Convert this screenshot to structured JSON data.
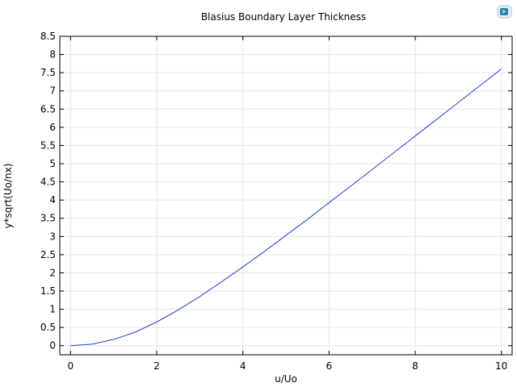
{
  "chart_data": {
    "type": "line",
    "title": "Blasius Boundary Layer Thickness",
    "xlabel": "u/Uo",
    "ylabel": "y*sqrt(Uo/nx)",
    "xlim": [
      -0.25,
      10.25
    ],
    "ylim": [
      -0.25,
      8.5
    ],
    "xticks": [
      0,
      2,
      4,
      6,
      8,
      10
    ],
    "yticks": [
      0,
      0.5,
      1,
      1.5,
      2,
      2.5,
      3,
      3.5,
      4,
      4.5,
      5,
      5.5,
      6,
      6.5,
      7,
      7.5,
      8,
      8.5
    ],
    "grid": true,
    "series": [
      {
        "color": "#1f3fd6",
        "x": [
          0,
          0.5,
          1,
          1.5,
          2,
          2.5,
          3,
          3.5,
          4,
          4.5,
          5,
          5.5,
          6,
          6.5,
          7,
          7.5,
          8,
          8.5,
          9,
          9.5,
          10
        ],
        "y": [
          0,
          0.04,
          0.17,
          0.37,
          0.65,
          0.98,
          1.35,
          1.75,
          2.16,
          2.59,
          3.03,
          3.47,
          3.93,
          4.38,
          4.84,
          5.3,
          5.76,
          6.22,
          6.68,
          7.14,
          7.6
        ]
      }
    ]
  },
  "toolbar": {
    "logo_icon": "app-logo-icon"
  }
}
